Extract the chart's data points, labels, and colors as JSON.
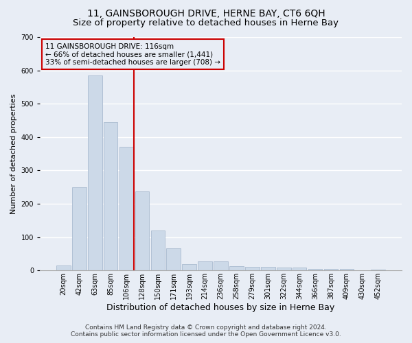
{
  "title": "11, GAINSBOROUGH DRIVE, HERNE BAY, CT6 6QH",
  "subtitle": "Size of property relative to detached houses in Herne Bay",
  "xlabel": "Distribution of detached houses by size in Herne Bay",
  "ylabel": "Number of detached properties",
  "bar_color": "#ccd9e8",
  "bar_edgecolor": "#aabbd0",
  "background_color": "#e8edf5",
  "grid_color": "#ffffff",
  "categories": [
    "20sqm",
    "42sqm",
    "63sqm",
    "85sqm",
    "106sqm",
    "128sqm",
    "150sqm",
    "171sqm",
    "193sqm",
    "214sqm",
    "236sqm",
    "258sqm",
    "279sqm",
    "301sqm",
    "322sqm",
    "344sqm",
    "366sqm",
    "387sqm",
    "409sqm",
    "430sqm",
    "452sqm"
  ],
  "values": [
    15,
    250,
    585,
    445,
    370,
    238,
    120,
    67,
    20,
    28,
    28,
    12,
    10,
    10,
    8,
    8,
    5,
    4,
    4,
    1,
    3
  ],
  "vline_color": "#cc0000",
  "annotation_lines": [
    "11 GAINSBOROUGH DRIVE: 116sqm",
    "← 66% of detached houses are smaller (1,441)",
    "33% of semi-detached houses are larger (708) →"
  ],
  "ylim": [
    0,
    700
  ],
  "yticks": [
    0,
    100,
    200,
    300,
    400,
    500,
    600,
    700
  ],
  "footer_line1": "Contains HM Land Registry data © Crown copyright and database right 2024.",
  "footer_line2": "Contains public sector information licensed under the Open Government Licence v3.0.",
  "title_fontsize": 10,
  "subtitle_fontsize": 9.5,
  "xlabel_fontsize": 9,
  "ylabel_fontsize": 8,
  "tick_fontsize": 7,
  "annotation_fontsize": 7.5,
  "footer_fontsize": 6.5
}
